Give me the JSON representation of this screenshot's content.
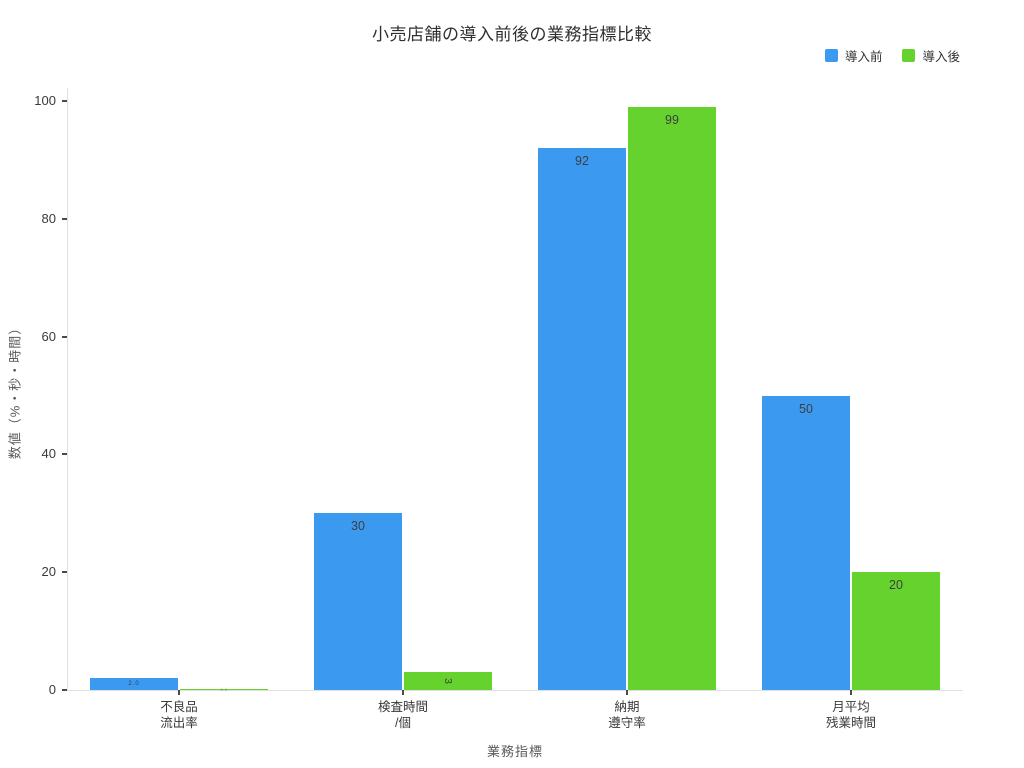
{
  "chart_data": {
    "type": "bar",
    "title": "小売店舗の導入前後の業務指標比較",
    "xlabel": "業務指標",
    "ylabel": "数値（%・秒・時間）",
    "categories": [
      "不良品\n流出率",
      "検査時間\n/個",
      "納期\n遵守率",
      "月平均\n残業時間"
    ],
    "series": [
      {
        "name": "導入前",
        "color": "#3B99F0",
        "values": [
          2.0,
          30,
          92,
          50
        ],
        "labels": [
          "2.0",
          "30",
          "92",
          "50"
        ]
      },
      {
        "name": "導入後",
        "color": "#66D22D",
        "values": [
          0.2,
          3,
          99,
          20
        ],
        "labels": [
          "0.2",
          "3",
          "99",
          "20"
        ]
      }
    ],
    "ylim": [
      0,
      100
    ],
    "yticks": [
      0,
      20,
      40,
      60,
      80,
      100
    ],
    "grid": false,
    "legend_position": "top-right",
    "bar_label_position": "inside-top"
  }
}
